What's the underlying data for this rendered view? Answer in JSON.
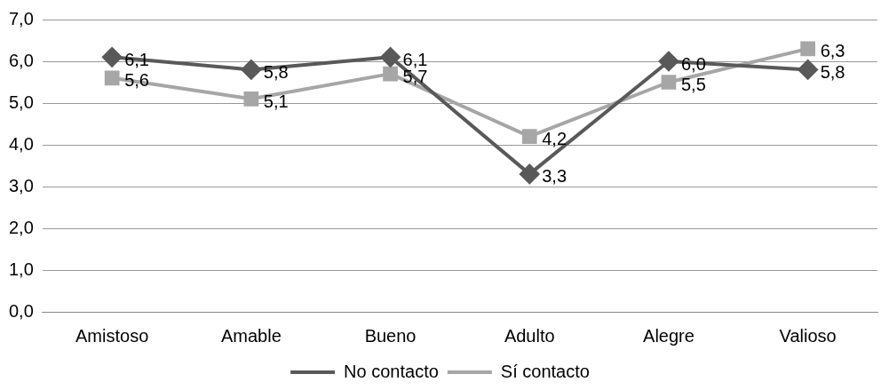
{
  "chart_data": {
    "type": "line",
    "categories": [
      "Amistoso",
      "Amable",
      "Bueno",
      "Adulto",
      "Alegre",
      "Valioso"
    ],
    "series": [
      {
        "name": "No contacto",
        "color": "#595959",
        "marker": "diamond",
        "values": [
          6.1,
          5.8,
          6.1,
          3.3,
          6.0,
          5.8
        ],
        "value_labels": [
          "6,1",
          "5,8",
          "6,1",
          "3,3",
          "6,0",
          "5,8"
        ]
      },
      {
        "name": "Sí contacto",
        "color": "#a6a6a6",
        "marker": "square",
        "values": [
          5.6,
          5.1,
          5.7,
          4.2,
          5.5,
          6.3
        ],
        "value_labels": [
          "5,6",
          "5,1",
          "5,7",
          "4,2",
          "5,5",
          "6,3"
        ]
      }
    ],
    "ylim": [
      0,
      7
    ],
    "yticks": [
      {
        "value": 0,
        "label": "0,0"
      },
      {
        "value": 1,
        "label": "1,0"
      },
      {
        "value": 2,
        "label": "2,0"
      },
      {
        "value": 3,
        "label": "3,0"
      },
      {
        "value": 4,
        "label": "4,0"
      },
      {
        "value": 5,
        "label": "5,0"
      },
      {
        "value": 6,
        "label": "6,0"
      },
      {
        "value": 7,
        "label": "7,0"
      }
    ],
    "grid": "y",
    "legend": "bottom",
    "line_style": "solid"
  }
}
